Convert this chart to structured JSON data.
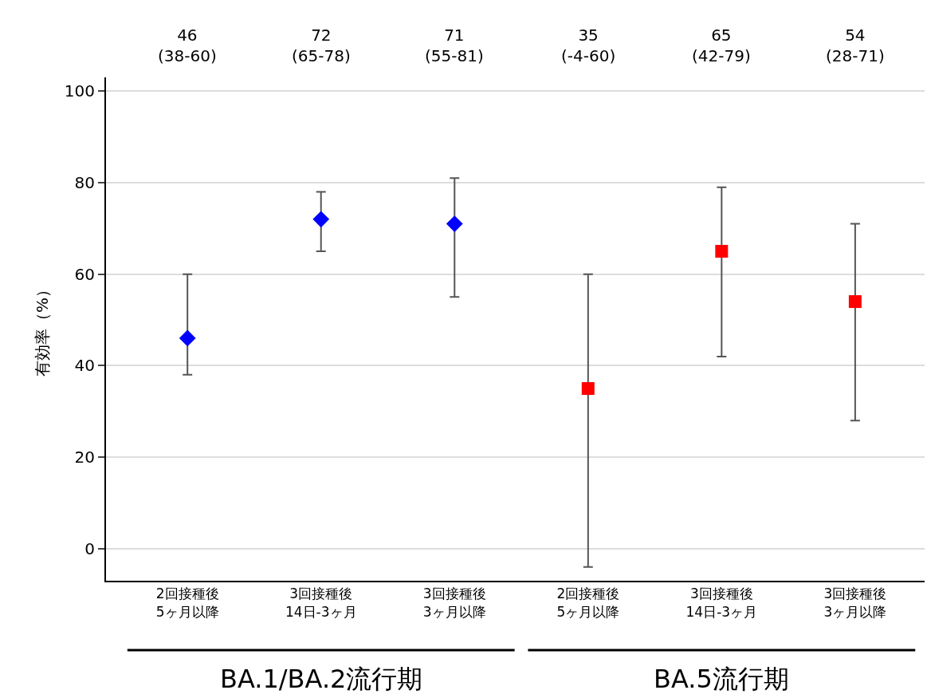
{
  "chart_data": {
    "type": "scatter",
    "categories": [
      "2回接種後\n5ヶ月以降",
      "3回接種後\n14日-3ヶ月",
      "3回接種後\n3ヶ月以降",
      "2回接種後\n5ヶ月以降",
      "3回接種後\n14日-3ヶ月",
      "3回接種後\n3ヶ月以降"
    ],
    "ylabel": "有効率（%）",
    "series": [
      {
        "colors": [
          "#0000ff",
          "#0000ff",
          "#0000ff",
          "#ff0000",
          "#ff0000",
          "#ff0000"
        ],
        "marker": [
          "diamond",
          "diamond",
          "diamond",
          "square",
          "square",
          "square"
        ],
        "values": [
          46,
          72,
          71,
          35,
          65,
          54
        ],
        "errors": [
          [
            38,
            60
          ],
          [
            65,
            78
          ],
          [
            55,
            81
          ],
          [
            -4,
            60
          ],
          [
            42,
            79
          ],
          [
            28,
            71
          ]
        ],
        "value_labels": [
          "46\n(38-60)",
          "72\n(65-78)",
          "71\n(55-81)",
          "35\n(-4-60)",
          "65\n(42-79)",
          "54\n(28-71)"
        ]
      }
    ],
    "annotations": [
      "BA.1/BA.2流行期",
      "BA.5流行期"
    ],
    "ylim": [
      -7,
      103
    ],
    "yticks": [
      0,
      20,
      40,
      60,
      80,
      100
    ],
    "grid": "y",
    "legend": false
  }
}
